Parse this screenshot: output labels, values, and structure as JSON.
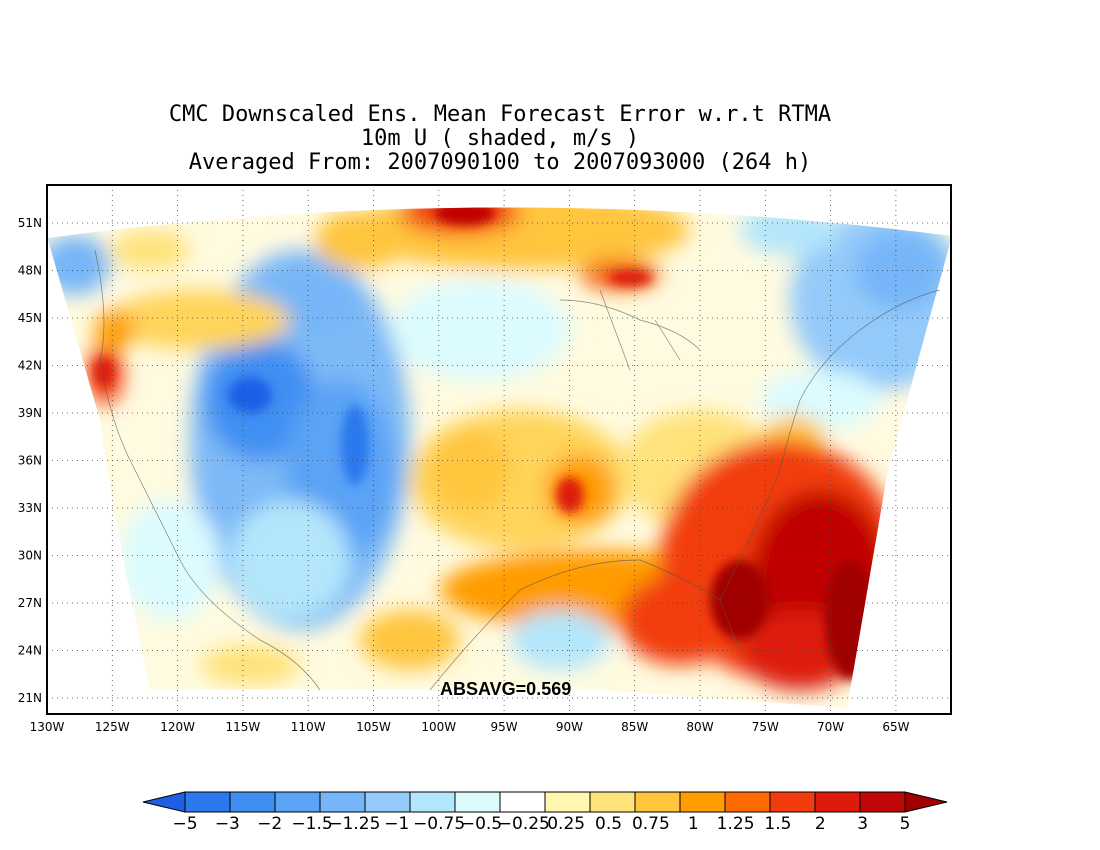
{
  "title": {
    "line1": "CMC Downscaled Ens. Mean Forecast Error w.r.t RTMA",
    "line2": "10m U ( shaded, m/s )",
    "line3": "Averaged From: 2007090100 to 2007093000 (264 h)"
  },
  "stat_label": "ABSAVG=0.569",
  "lat_labels": [
    "51N",
    "48N",
    "45N",
    "42N",
    "39N",
    "36N",
    "33N",
    "30N",
    "27N",
    "24N",
    "21N"
  ],
  "lon_labels": [
    "130W",
    "125W",
    "120W",
    "115W",
    "110W",
    "105W",
    "100W",
    "95W",
    "90W",
    "85W",
    "80W",
    "75W",
    "70W",
    "65W"
  ],
  "colorbar": {
    "tick_labels": [
      "-5",
      "-3",
      "-2",
      "-1.5",
      "-1.25",
      "-1",
      "-0.75",
      "-0.5",
      "-0.25",
      "0.25",
      "0.5",
      "0.75",
      "1",
      "1.25",
      "1.5",
      "2",
      "3",
      "5"
    ],
    "colors": [
      "#1e5fe6",
      "#2b78ee",
      "#3f8ff2",
      "#5aa3f5",
      "#76b6f8",
      "#94cafa",
      "#b4e6fb",
      "#dcfbff",
      "#ffffff",
      "#fff7b0",
      "#ffe27a",
      "#ffc53d",
      "#ff9c00",
      "#ff6a00",
      "#f23c10",
      "#dd1a0c",
      "#c00606",
      "#a00000"
    ]
  }
}
